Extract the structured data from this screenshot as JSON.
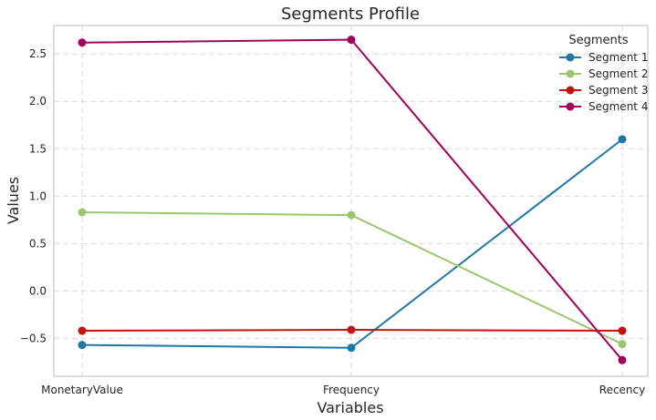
{
  "chart_data": {
    "type": "line",
    "title": "Segments Profile",
    "xlabel": "Variables",
    "ylabel": "Values",
    "categories": [
      "MonetaryValue",
      "Frequency",
      "Recency"
    ],
    "ylim": [
      -0.9,
      2.8
    ],
    "yticks": [
      -0.5,
      0.0,
      0.5,
      1.0,
      1.5,
      2.0,
      2.5
    ],
    "ytick_labels": [
      "−0.5",
      "0.0",
      "0.5",
      "1.0",
      "1.5",
      "2.0",
      "2.5"
    ],
    "grid": true,
    "legend": {
      "title": "Segments",
      "placement": "top-right"
    },
    "series": [
      {
        "name": "Segment 1",
        "color": "#1f77a4",
        "values": [
          -0.57,
          -0.6,
          1.6
        ]
      },
      {
        "name": "Segment 2",
        "color": "#9cc66e",
        "values": [
          0.83,
          0.8,
          -0.56
        ]
      },
      {
        "name": "Segment 3",
        "color": "#c0140c",
        "values": [
          -0.42,
          -0.41,
          -0.42
        ]
      },
      {
        "name": "Segment 4",
        "color": "#a0005a",
        "values": [
          2.62,
          2.65,
          -0.73
        ]
      }
    ]
  }
}
